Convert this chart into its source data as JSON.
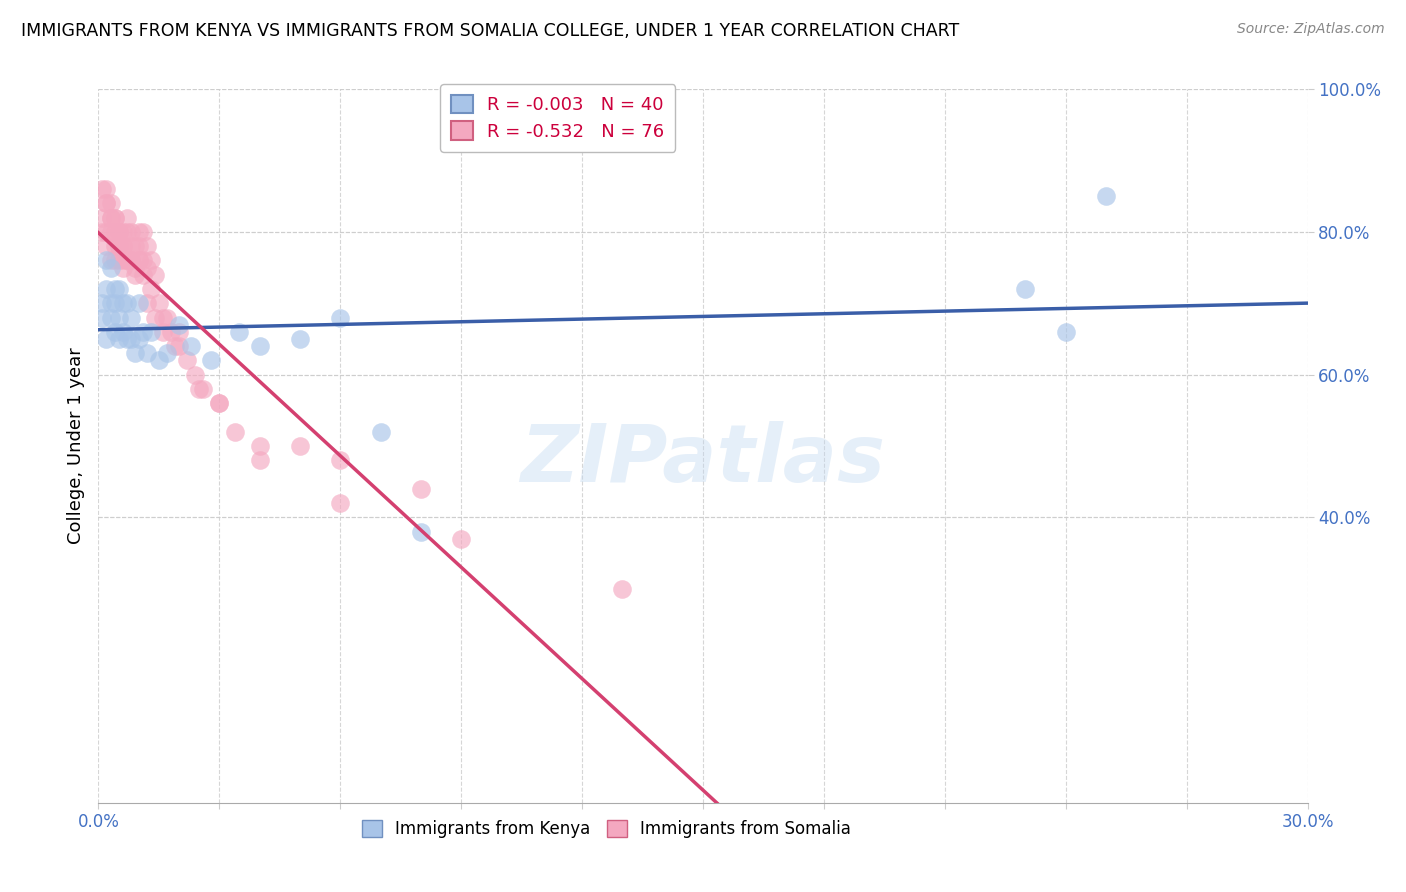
{
  "title": "IMMIGRANTS FROM KENYA VS IMMIGRANTS FROM SOMALIA COLLEGE, UNDER 1 YEAR CORRELATION CHART",
  "source": "Source: ZipAtlas.com",
  "ylabel": "College, Under 1 year",
  "xlim": [
    0.0,
    0.3
  ],
  "ylim": [
    0.0,
    1.0
  ],
  "legend_r_kenya": "-0.003",
  "legend_n_kenya": "40",
  "legend_r_somalia": "-0.532",
  "legend_n_somalia": "76",
  "color_kenya": "#a8c4e8",
  "color_somalia": "#f4a8c0",
  "line_color_kenya": "#3a5ea8",
  "line_color_somalia": "#d44070",
  "watermark": "ZIPatlas",
  "kenya_x": [
    0.001,
    0.001,
    0.002,
    0.002,
    0.002,
    0.003,
    0.003,
    0.003,
    0.004,
    0.004,
    0.004,
    0.005,
    0.005,
    0.005,
    0.006,
    0.006,
    0.007,
    0.007,
    0.008,
    0.008,
    0.009,
    0.01,
    0.01,
    0.011,
    0.012,
    0.013,
    0.015,
    0.017,
    0.02,
    0.023,
    0.028,
    0.035,
    0.04,
    0.05,
    0.06,
    0.07,
    0.08,
    0.23,
    0.24,
    0.25
  ],
  "kenya_y": [
    0.68,
    0.7,
    0.65,
    0.72,
    0.76,
    0.68,
    0.7,
    0.75,
    0.66,
    0.7,
    0.72,
    0.65,
    0.68,
    0.72,
    0.66,
    0.7,
    0.65,
    0.7,
    0.65,
    0.68,
    0.63,
    0.65,
    0.7,
    0.66,
    0.63,
    0.66,
    0.62,
    0.63,
    0.67,
    0.64,
    0.62,
    0.66,
    0.64,
    0.65,
    0.68,
    0.52,
    0.38,
    0.72,
    0.66,
    0.85
  ],
  "somalia_x": [
    0.001,
    0.001,
    0.002,
    0.002,
    0.002,
    0.003,
    0.003,
    0.003,
    0.004,
    0.004,
    0.004,
    0.005,
    0.005,
    0.005,
    0.006,
    0.006,
    0.006,
    0.007,
    0.007,
    0.007,
    0.008,
    0.008,
    0.008,
    0.009,
    0.009,
    0.01,
    0.01,
    0.01,
    0.011,
    0.011,
    0.012,
    0.012,
    0.013,
    0.013,
    0.014,
    0.015,
    0.016,
    0.017,
    0.018,
    0.019,
    0.02,
    0.022,
    0.024,
    0.026,
    0.03,
    0.034,
    0.04,
    0.05,
    0.06,
    0.08,
    0.001,
    0.002,
    0.002,
    0.003,
    0.003,
    0.004,
    0.004,
    0.005,
    0.005,
    0.006,
    0.006,
    0.007,
    0.008,
    0.009,
    0.01,
    0.011,
    0.012,
    0.014,
    0.016,
    0.02,
    0.025,
    0.03,
    0.04,
    0.06,
    0.09,
    0.13
  ],
  "somalia_y": [
    0.8,
    0.82,
    0.84,
    0.78,
    0.8,
    0.82,
    0.76,
    0.8,
    0.78,
    0.76,
    0.82,
    0.8,
    0.76,
    0.78,
    0.8,
    0.78,
    0.75,
    0.76,
    0.8,
    0.82,
    0.78,
    0.76,
    0.8,
    0.78,
    0.75,
    0.76,
    0.8,
    0.78,
    0.76,
    0.8,
    0.78,
    0.75,
    0.76,
    0.72,
    0.74,
    0.7,
    0.68,
    0.68,
    0.66,
    0.64,
    0.66,
    0.62,
    0.6,
    0.58,
    0.56,
    0.52,
    0.5,
    0.5,
    0.48,
    0.44,
    0.86,
    0.86,
    0.84,
    0.84,
    0.82,
    0.82,
    0.8,
    0.8,
    0.78,
    0.78,
    0.76,
    0.76,
    0.76,
    0.74,
    0.76,
    0.74,
    0.7,
    0.68,
    0.66,
    0.64,
    0.58,
    0.56,
    0.48,
    0.42,
    0.37,
    0.3
  ]
}
